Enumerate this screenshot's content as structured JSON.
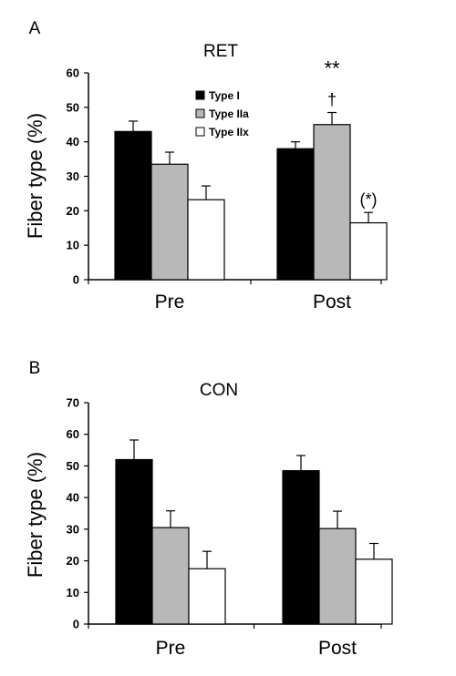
{
  "chart_data": [
    {
      "panel_label": "A",
      "type": "bar",
      "title": "RET",
      "ylabel": "Fiber type (%)",
      "xlabel": "",
      "ylim": [
        0,
        60
      ],
      "yticks": [
        0,
        10,
        20,
        30,
        40,
        50,
        60
      ],
      "categories": [
        "Pre",
        "Post"
      ],
      "series": [
        {
          "name": "Type I",
          "color": "#000000",
          "values": [
            43,
            38
          ],
          "errors": [
            3,
            2
          ]
        },
        {
          "name": "Type IIa",
          "color": "#b8b8b8",
          "values": [
            33.5,
            45
          ],
          "errors": [
            3.5,
            3.5
          ]
        },
        {
          "name": "Type IIx",
          "color": "#ffffff",
          "values": [
            23.2,
            16.5
          ],
          "errors": [
            4,
            3
          ]
        }
      ],
      "legend": {
        "placement": "top-center"
      },
      "grid": false,
      "annotations": [
        {
          "text": "**",
          "category": "Post",
          "series": "Type IIa"
        },
        {
          "text": "†",
          "category": "Post",
          "series": "Type IIa"
        },
        {
          "text": "(*)",
          "category": "Post",
          "series": "Type IIx"
        }
      ]
    },
    {
      "panel_label": "B",
      "type": "bar",
      "title": "CON",
      "ylabel": "Fiber type (%)",
      "xlabel": "",
      "ylim": [
        0,
        70
      ],
      "yticks": [
        0,
        10,
        20,
        30,
        40,
        50,
        60,
        70
      ],
      "categories": [
        "Pre",
        "Post"
      ],
      "series": [
        {
          "name": "Type I",
          "color": "#000000",
          "values": [
            52,
            48.5
          ],
          "errors": [
            6.2,
            4.8
          ]
        },
        {
          "name": "Type IIa",
          "color": "#b8b8b8",
          "values": [
            30.5,
            30.2
          ],
          "errors": [
            5.3,
            5.5
          ]
        },
        {
          "name": "Type IIx",
          "color": "#ffffff",
          "values": [
            17.5,
            20.5
          ],
          "errors": [
            5.5,
            5
          ]
        }
      ],
      "legend": null,
      "grid": false,
      "annotations": []
    }
  ]
}
